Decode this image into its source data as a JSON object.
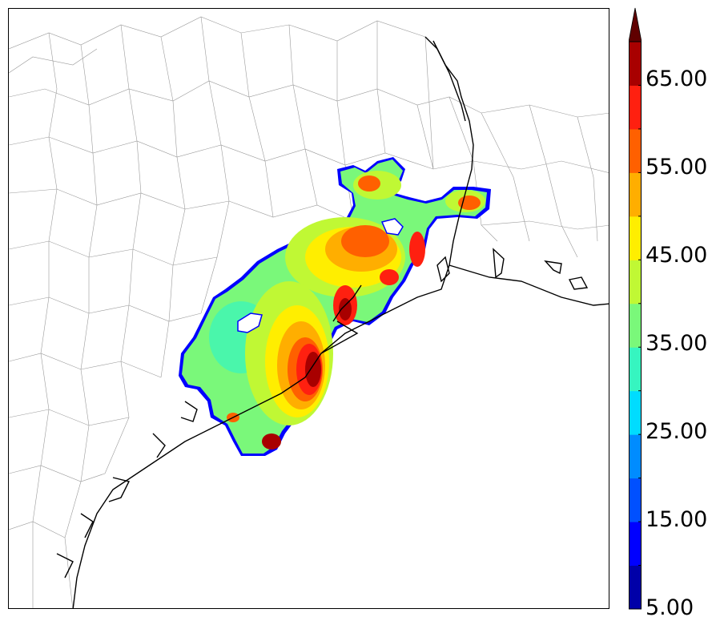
{
  "colorbar": {
    "labels": [
      "65.00",
      "55.00",
      "45.00",
      "35.00",
      "25.00",
      "15.00",
      "5.00"
    ],
    "levels": [
      5,
      10,
      15,
      20,
      25,
      30,
      35,
      40,
      45,
      50,
      55,
      60,
      65,
      70
    ],
    "colors": [
      "#0000a8",
      "#0000ff",
      "#0050ff",
      "#008cff",
      "#00dcff",
      "#36f5c0",
      "#7af87a",
      "#c0f834",
      "#ffee00",
      "#ffae00",
      "#ff6000",
      "#ff2010",
      "#a80000"
    ],
    "extend": "max"
  },
  "map": {
    "region": "Texas Gulf Coast (Houston area)",
    "border_color": "#000000",
    "county_line_color": "#888888",
    "coast_color": "#000000"
  }
}
